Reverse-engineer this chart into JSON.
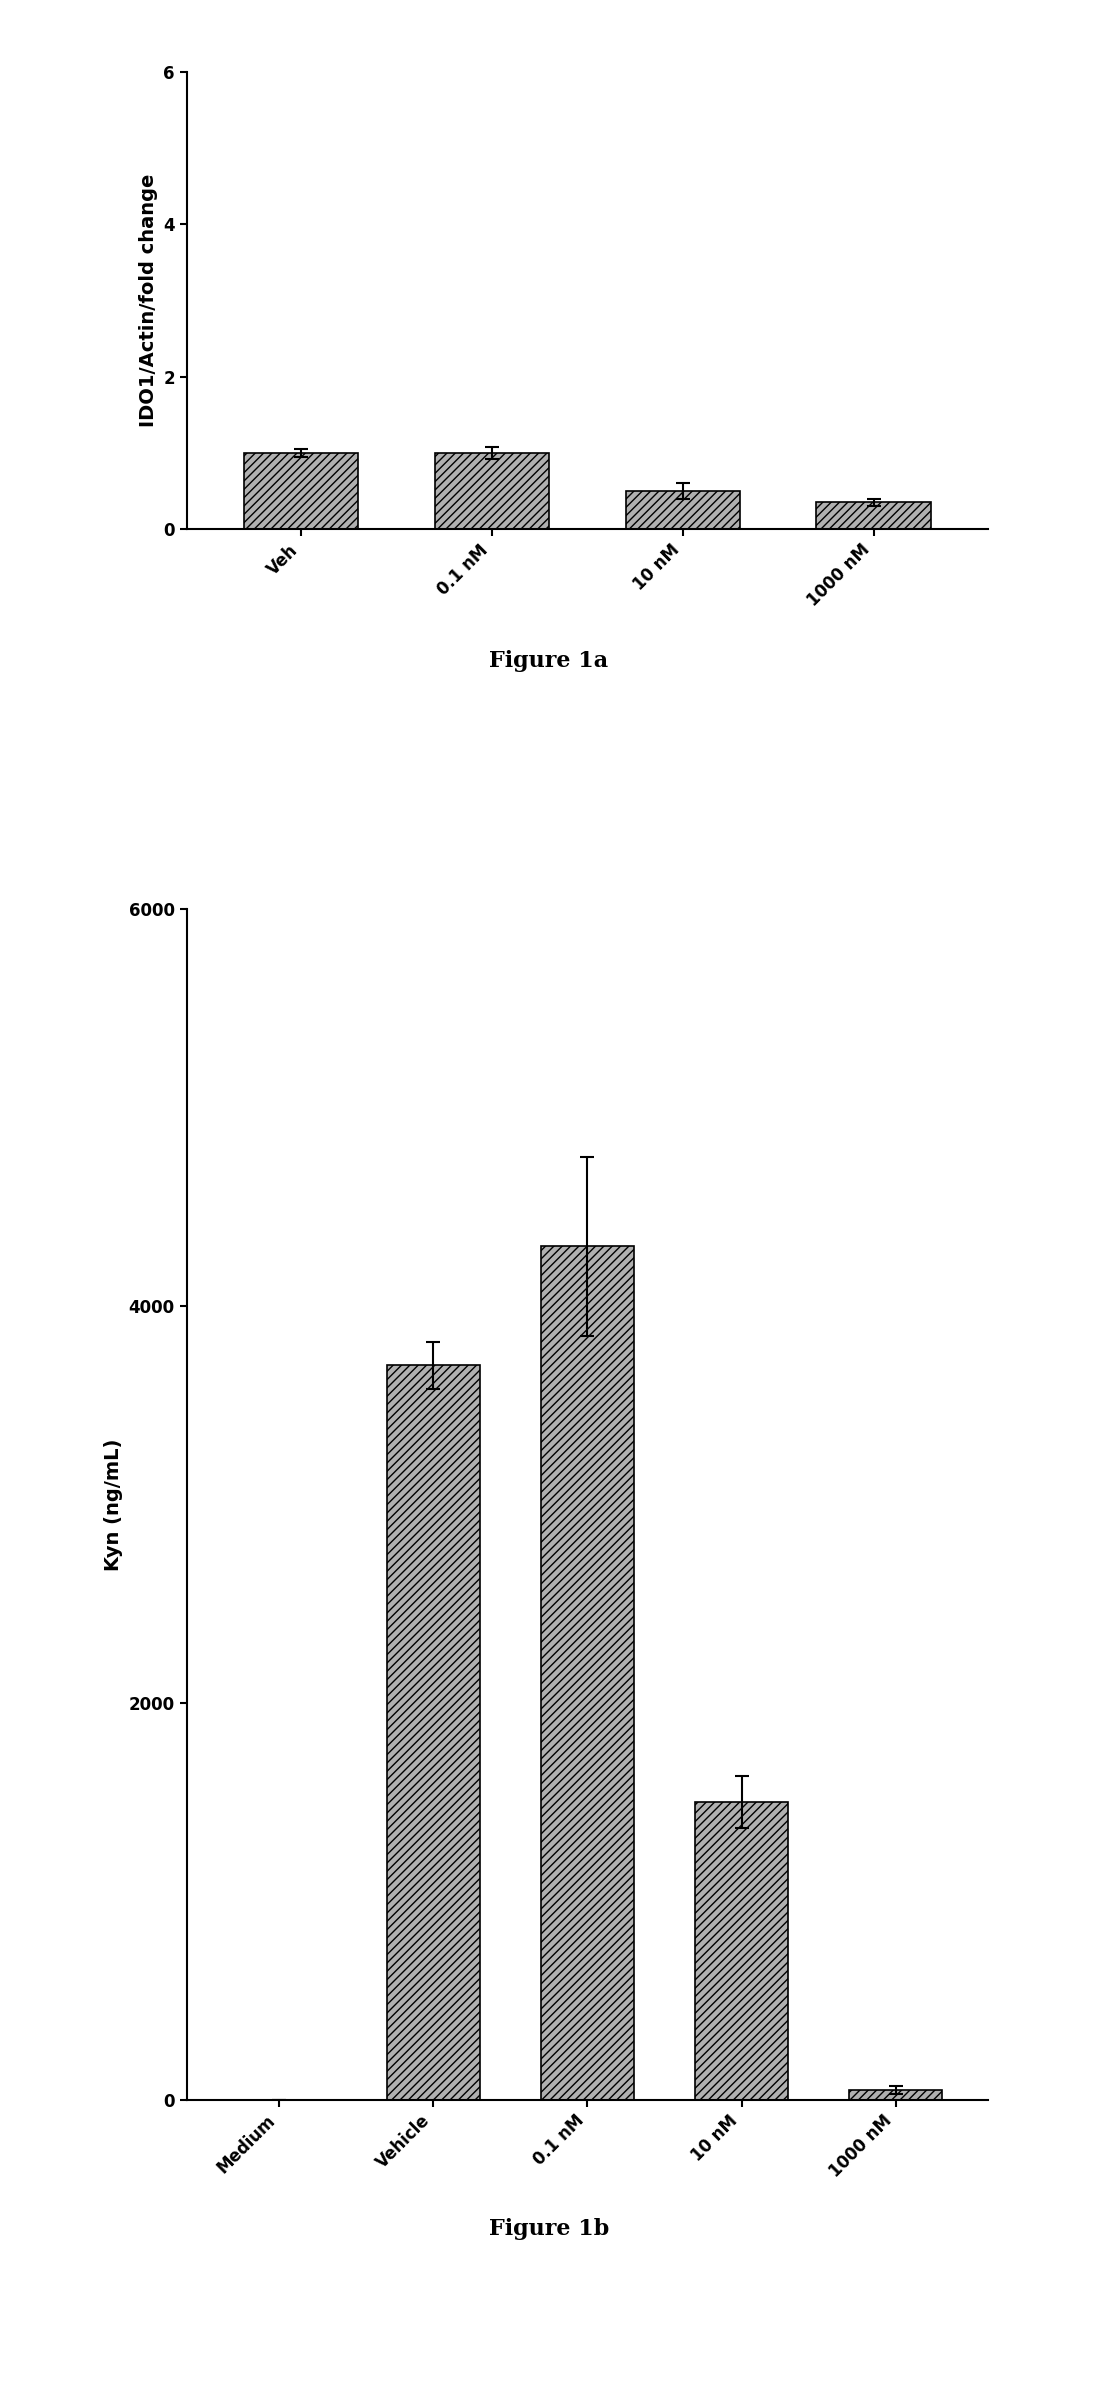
{
  "fig1a": {
    "categories": [
      "Veh",
      "0.1 nM",
      "10 nM",
      "1000 nM"
    ],
    "values": [
      1.0,
      1.0,
      0.5,
      0.35
    ],
    "errors": [
      0.05,
      0.08,
      0.1,
      0.05
    ],
    "ylabel": "IDO1/Actin/fold change",
    "ylim": [
      0,
      6
    ],
    "yticks": [
      0,
      2,
      4,
      6
    ],
    "caption": "Figure 1a"
  },
  "fig1b": {
    "categories": [
      "Medium",
      "Vehicle",
      "0.1 nM",
      "10 nM",
      "1000 nM"
    ],
    "values": [
      0,
      3700,
      4300,
      1500,
      50
    ],
    "errors": [
      0,
      120,
      450,
      130,
      20
    ],
    "ylabel": "Kyn (ng/mL)",
    "ylim": [
      0,
      6000
    ],
    "yticks": [
      0,
      2000,
      4000,
      6000
    ],
    "caption": "Figure 1b"
  },
  "hatch_pattern": "////",
  "bar_color": "#b0b0b0",
  "bar_edge_color": "#000000",
  "background_color": "#ffffff",
  "tick_label_fontsize": 12,
  "axis_label_fontsize": 14,
  "caption_fontsize": 16,
  "bar_width": 0.6,
  "linewidth": 1.2
}
